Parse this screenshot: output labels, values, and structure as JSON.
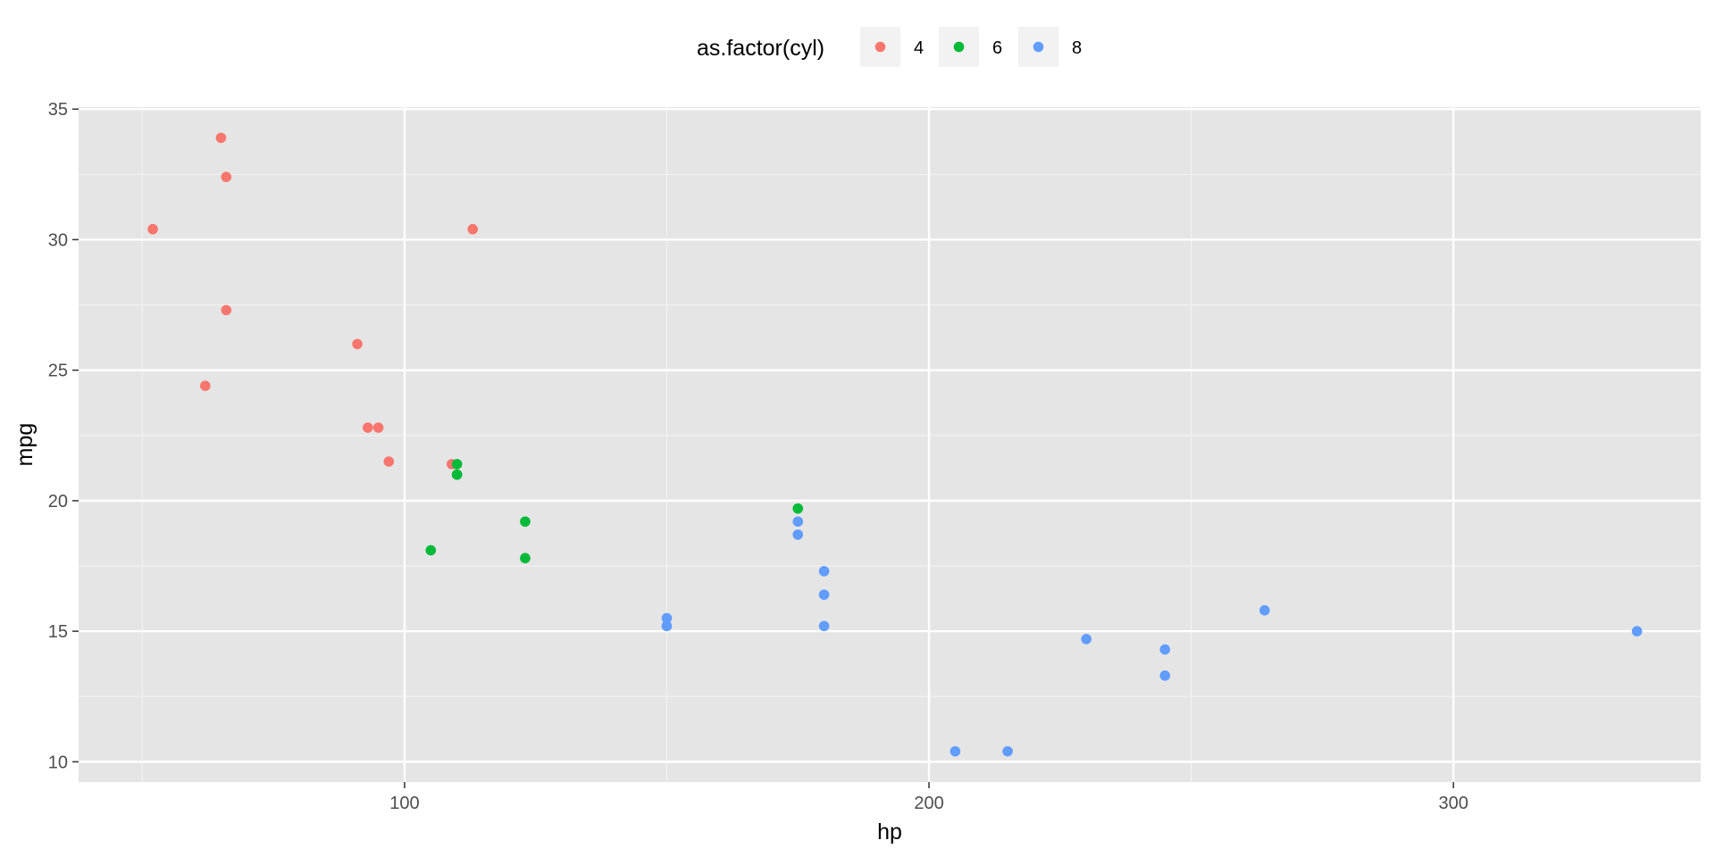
{
  "chart_data": {
    "type": "scatter",
    "xlabel": "hp",
    "ylabel": "mpg",
    "xlim": [
      37.85,
      347.15
    ],
    "ylim": [
      9.225,
      35.075
    ],
    "x_ticks": [
      100,
      200,
      300
    ],
    "y_ticks": [
      10,
      15,
      20,
      25,
      30,
      35
    ],
    "grid": true,
    "legend": {
      "title": "as.factor(cyl)",
      "position": "top",
      "labels": [
        "4",
        "6",
        "8"
      ]
    },
    "series": [
      {
        "name": "4",
        "color": "#F8766D",
        "points": [
          {
            "x": 93,
            "y": 22.8
          },
          {
            "x": 62,
            "y": 24.4
          },
          {
            "x": 95,
            "y": 22.8
          },
          {
            "x": 66,
            "y": 32.4
          },
          {
            "x": 52,
            "y": 30.4
          },
          {
            "x": 65,
            "y": 33.9
          },
          {
            "x": 97,
            "y": 21.5
          },
          {
            "x": 66,
            "y": 27.3
          },
          {
            "x": 91,
            "y": 26.0
          },
          {
            "x": 113,
            "y": 30.4
          },
          {
            "x": 109,
            "y": 21.4
          }
        ]
      },
      {
        "name": "6",
        "color": "#00BA38",
        "points": [
          {
            "x": 110,
            "y": 21.0
          },
          {
            "x": 110,
            "y": 21.0
          },
          {
            "x": 110,
            "y": 21.4
          },
          {
            "x": 105,
            "y": 18.1
          },
          {
            "x": 123,
            "y": 19.2
          },
          {
            "x": 123,
            "y": 17.8
          },
          {
            "x": 175,
            "y": 19.7
          }
        ]
      },
      {
        "name": "8",
        "color": "#619CFF",
        "points": [
          {
            "x": 175,
            "y": 18.7
          },
          {
            "x": 245,
            "y": 14.3
          },
          {
            "x": 180,
            "y": 16.4
          },
          {
            "x": 180,
            "y": 17.3
          },
          {
            "x": 180,
            "y": 15.2
          },
          {
            "x": 205,
            "y": 10.4
          },
          {
            "x": 215,
            "y": 10.4
          },
          {
            "x": 230,
            "y": 14.7
          },
          {
            "x": 150,
            "y": 15.5
          },
          {
            "x": 150,
            "y": 15.2
          },
          {
            "x": 245,
            "y": 13.3
          },
          {
            "x": 175,
            "y": 19.2
          },
          {
            "x": 264,
            "y": 15.8
          },
          {
            "x": 335,
            "y": 15.0
          }
        ]
      }
    ]
  }
}
